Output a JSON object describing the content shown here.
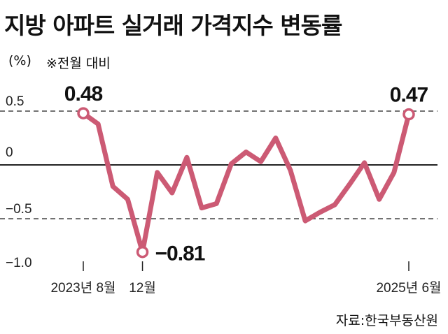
{
  "chart_data": {
    "type": "line",
    "title": "지방 아파트 실거래 가격지수 변동률",
    "unit": "(%)",
    "note": "※전월 대비",
    "source": "자료:한국부동산원",
    "color": "#cc5a74",
    "x": [
      "2023-08",
      "2023-09",
      "2023-10",
      "2023-11",
      "2023-12",
      "2024-01",
      "2024-02",
      "2024-03",
      "2024-04",
      "2024-05",
      "2024-06",
      "2024-07",
      "2024-08",
      "2024-09",
      "2024-10",
      "2024-11",
      "2024-12",
      "2025-01",
      "2025-02",
      "2025-03",
      "2025-04",
      "2025-05",
      "2025-06"
    ],
    "values": [
      0.48,
      0.38,
      -0.2,
      -0.32,
      -0.81,
      -0.07,
      -0.26,
      0.07,
      -0.4,
      -0.36,
      0.01,
      0.12,
      0.03,
      0.25,
      -0.05,
      -0.52,
      -0.44,
      -0.37,
      -0.18,
      0.02,
      -0.32,
      -0.07,
      0.47
    ],
    "ylim": [
      -1.0,
      0.6
    ],
    "yticks": [
      {
        "v": 0.5,
        "label": "0.5"
      },
      {
        "v": 0,
        "label": "0"
      },
      {
        "v": -0.5,
        "label": "−0.5"
      },
      {
        "v": -1.0,
        "label": "−1.0"
      }
    ],
    "xticks": [
      {
        "i": 0,
        "label": "2023년 8월"
      },
      {
        "i": 4,
        "label": "12월"
      },
      {
        "i": 22,
        "label": "2025년 6월"
      }
    ],
    "annotations": [
      {
        "i": 0,
        "label": "0.48"
      },
      {
        "i": 4,
        "label": "−0.81"
      },
      {
        "i": 22,
        "label": "0.47"
      }
    ]
  }
}
